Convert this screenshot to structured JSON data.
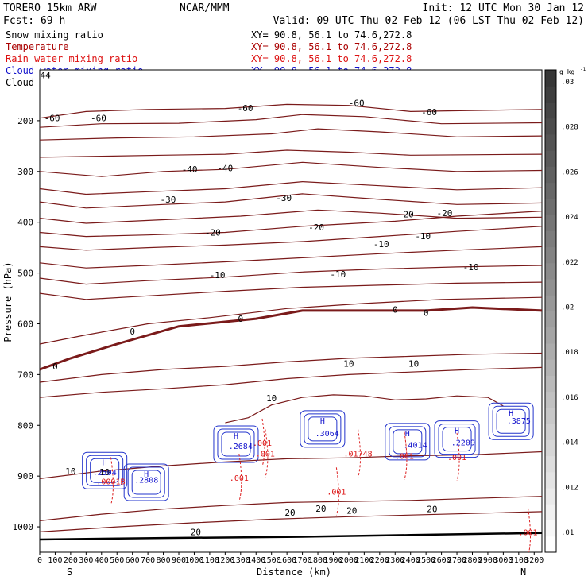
{
  "header": {
    "model": "TORERO  15km ARW",
    "center": "NCAR/MMM",
    "init": "Init: 12 UTC Mon 30 Jan 12",
    "fcst": "Fcst:    69 h",
    "valid": "Valid: 09 UTC Thu 02 Feb 12 (06 LST Thu 02 Feb 12)"
  },
  "fields": [
    {
      "name": "Snow mixing ratio",
      "xy": "",
      "color": "#000000"
    },
    {
      "name": "Temperature",
      "xy": "XY=  90.8, 56.1 to  74.6,272.8",
      "color": "#aa0000"
    },
    {
      "name": "Rain water mixing ratio",
      "xy": "XY=  90.8, 56.1 to  74.6,272.8",
      "color": "#dd1111"
    },
    {
      "name": "Cloud water mixing ratio",
      "xy": "XY=  90.8, 56.1 to  74.6,272.8",
      "color": "#1111cc"
    },
    {
      "name": "Cloud ice mixing ratio",
      "xy": "XY=  90.8, 56.1 to  74.6,272.8",
      "color": "#000000"
    }
  ],
  "xy_top": "XY=  90.8, 56.1 to  74.6,272.8",
  "chart_data": {
    "type": "cross-section",
    "xlabel": "Distance (km)",
    "ylabel": "Pressure (hPa)",
    "xlim": [
      0,
      3250
    ],
    "ylim": [
      1050,
      100
    ],
    "xticks": [
      "0",
      "100",
      "200",
      "300",
      "400",
      "500",
      "600",
      "700",
      "800",
      "900",
      "1000",
      "1100",
      "1200",
      "1300",
      "1400",
      "1500",
      "1600",
      "1700",
      "1800",
      "1900",
      "2000",
      "2100",
      "2200",
      "2300",
      "2400",
      "2500",
      "2600",
      "2700",
      "2800",
      "2900",
      "3000",
      "3100",
      "3200"
    ],
    "yticks": [
      "200",
      "300",
      "400",
      "500",
      "600",
      "700",
      "800",
      "900",
      "1000"
    ],
    "endpoints": {
      "left": "S",
      "right": "N"
    },
    "colorbar": {
      "unit": "g kg",
      "unit_exp": "-1",
      "labels": [
        ".01",
        ".012",
        ".014",
        ".016",
        ".018",
        ".02",
        ".022",
        ".024",
        ".026",
        ".028",
        ".03"
      ]
    },
    "temperature_contours": [
      {
        "label": "-60",
        "points": [
          [
            0,
            195
          ],
          [
            300,
            182
          ],
          [
            700,
            178
          ],
          [
            1200,
            176
          ],
          [
            1600,
            168
          ],
          [
            2000,
            170
          ],
          [
            2400,
            182
          ],
          [
            2800,
            180
          ],
          [
            3250,
            178
          ]
        ]
      },
      {
        "label": "-60",
        "points": [
          [
            0,
            213
          ],
          [
            400,
            206
          ],
          [
            900,
            205
          ],
          [
            1400,
            198
          ],
          [
            1700,
            188
          ],
          [
            2100,
            192
          ],
          [
            2600,
            206
          ],
          [
            3250,
            204
          ]
        ]
      },
      {
        "label": "-50",
        "points": [
          [
            0,
            238
          ],
          [
            500,
            234
          ],
          [
            1000,
            232
          ],
          [
            1500,
            226
          ],
          [
            1800,
            216
          ],
          [
            2200,
            222
          ],
          [
            2700,
            232
          ],
          [
            3250,
            230
          ]
        ]
      },
      {
        "label": "-40",
        "points": [
          [
            0,
            272
          ],
          [
            400,
            270
          ],
          [
            800,
            268
          ],
          [
            1200,
            266
          ],
          [
            1600,
            258
          ],
          [
            2000,
            262
          ],
          [
            2400,
            268
          ],
          [
            3250,
            266
          ]
        ]
      },
      {
        "label": "-40",
        "points": [
          [
            0,
            300
          ],
          [
            400,
            310
          ],
          [
            800,
            300
          ],
          [
            1200,
            296
          ],
          [
            1700,
            282
          ],
          [
            2200,
            292
          ],
          [
            2700,
            300
          ],
          [
            3250,
            298
          ]
        ]
      },
      {
        "label": "-30",
        "points": [
          [
            0,
            334
          ],
          [
            300,
            345
          ],
          [
            700,
            340
          ],
          [
            1200,
            334
          ],
          [
            1700,
            320
          ],
          [
            2200,
            328
          ],
          [
            2700,
            336
          ],
          [
            3250,
            332
          ]
        ]
      },
      {
        "label": "-30",
        "points": [
          [
            0,
            360
          ],
          [
            300,
            372
          ],
          [
            800,
            365
          ],
          [
            1200,
            360
          ],
          [
            1700,
            344
          ],
          [
            2200,
            355
          ],
          [
            2700,
            365
          ],
          [
            3250,
            362
          ]
        ]
      },
      {
        "label": "-20",
        "points": [
          [
            0,
            392
          ],
          [
            300,
            402
          ],
          [
            800,
            395
          ],
          [
            1300,
            388
          ],
          [
            1800,
            376
          ],
          [
            2200,
            382
          ],
          [
            2700,
            392
          ],
          [
            3250,
            390
          ]
        ]
      },
      {
        "label": "-20",
        "points": [
          [
            0,
            420
          ],
          [
            300,
            428
          ],
          [
            700,
            425
          ],
          [
            1200,
            420
          ],
          [
            1700,
            408
          ],
          [
            2300,
            398
          ],
          [
            2700,
            388
          ],
          [
            3250,
            378
          ]
        ]
      },
      {
        "label": "-10",
        "points": [
          [
            0,
            448
          ],
          [
            300,
            455
          ],
          [
            700,
            450
          ],
          [
            1200,
            445
          ],
          [
            1700,
            438
          ],
          [
            2200,
            428
          ],
          [
            2700,
            418
          ],
          [
            3250,
            408
          ]
        ]
      },
      {
        "label": "-10",
        "points": [
          [
            0,
            480
          ],
          [
            300,
            490
          ],
          [
            700,
            485
          ],
          [
            1200,
            478
          ],
          [
            1700,
            470
          ],
          [
            2200,
            462
          ],
          [
            2700,
            455
          ],
          [
            3250,
            448
          ]
        ]
      },
      {
        "label": "-10",
        "points": [
          [
            0,
            510
          ],
          [
            300,
            522
          ],
          [
            700,
            515
          ],
          [
            1200,
            508
          ],
          [
            1700,
            498
          ],
          [
            2200,
            492
          ],
          [
            2700,
            488
          ],
          [
            3250,
            485
          ]
        ]
      },
      {
        "label": "-10",
        "points": [
          [
            0,
            540
          ],
          [
            300,
            552
          ],
          [
            700,
            545
          ],
          [
            1200,
            536
          ],
          [
            1700,
            528
          ],
          [
            2200,
            524
          ],
          [
            2700,
            520
          ],
          [
            3250,
            518
          ]
        ]
      },
      {
        "label": "0",
        "thick": true,
        "points": [
          [
            0,
            690
          ],
          [
            200,
            668
          ],
          [
            500,
            640
          ],
          [
            900,
            605
          ],
          [
            1400,
            590
          ],
          [
            1700,
            574
          ],
          [
            2100,
            574
          ],
          [
            2500,
            574
          ],
          [
            2800,
            568
          ],
          [
            3250,
            574
          ]
        ]
      },
      {
        "label": "0",
        "points": [
          [
            0,
            640
          ],
          [
            300,
            622
          ],
          [
            700,
            600
          ],
          [
            1100,
            588
          ],
          [
            1600,
            570
          ],
          [
            2100,
            560
          ],
          [
            2600,
            552
          ],
          [
            3250,
            548
          ]
        ]
      },
      {
        "label": "10",
        "points": [
          [
            0,
            715
          ],
          [
            400,
            700
          ],
          [
            800,
            690
          ],
          [
            1200,
            684
          ],
          [
            1600,
            675
          ],
          [
            2000,
            668
          ],
          [
            2400,
            664
          ],
          [
            2800,
            660
          ],
          [
            3250,
            658
          ]
        ]
      },
      {
        "label": "10",
        "points": [
          [
            0,
            745
          ],
          [
            400,
            735
          ],
          [
            800,
            728
          ],
          [
            1200,
            720
          ],
          [
            1600,
            708
          ],
          [
            2000,
            700
          ],
          [
            2400,
            695
          ],
          [
            2800,
            690
          ],
          [
            3250,
            686
          ]
        ]
      },
      {
        "label": "10",
        "points": [
          [
            1200,
            795
          ],
          [
            1350,
            785
          ],
          [
            1500,
            760
          ],
          [
            1700,
            745
          ],
          [
            1900,
            740
          ],
          [
            2100,
            742
          ],
          [
            2300,
            750
          ],
          [
            2500,
            748
          ],
          [
            2700,
            742
          ],
          [
            2900,
            745
          ],
          [
            3000,
            762
          ]
        ]
      },
      {
        "label": "10",
        "points": [
          [
            0,
            905
          ],
          [
            400,
            890
          ],
          [
            800,
            880
          ],
          [
            1200,
            872
          ],
          [
            1600,
            866
          ],
          [
            2000,
            864
          ],
          [
            2400,
            860
          ],
          [
            2800,
            858
          ],
          [
            3250,
            852
          ]
        ]
      },
      {
        "label": "20",
        "points": [
          [
            0,
            988
          ],
          [
            400,
            975
          ],
          [
            800,
            965
          ],
          [
            1200,
            958
          ],
          [
            1600,
            952
          ],
          [
            2000,
            950
          ],
          [
            2400,
            948
          ],
          [
            2800,
            944
          ],
          [
            3250,
            940
          ]
        ]
      },
      {
        "label": "20",
        "points": [
          [
            0,
            1010
          ],
          [
            500,
            1000
          ],
          [
            1000,
            992
          ],
          [
            1500,
            985
          ],
          [
            2000,
            980
          ],
          [
            2500,
            976
          ],
          [
            3000,
            972
          ],
          [
            3250,
            970
          ]
        ]
      }
    ],
    "surface": {
      "points": [
        [
          0,
          1025
        ],
        [
          800,
          1022
        ],
        [
          1600,
          1020
        ],
        [
          2400,
          1016
        ],
        [
          3250,
          1012
        ]
      ]
    },
    "contour_labels_temperature": [
      {
        "text": "-44",
        "x": 20,
        "p": 110
      },
      {
        "text": "-60",
        "x": 80,
        "p": 195
      },
      {
        "text": "-60",
        "x": 380,
        "p": 195
      },
      {
        "text": "-60",
        "x": 1330,
        "p": 175
      },
      {
        "text": "-60",
        "x": 2050,
        "p": 165
      },
      {
        "text": "-60",
        "x": 2520,
        "p": 183
      },
      {
        "text": "-40",
        "x": 970,
        "p": 296
      },
      {
        "text": "-40",
        "x": 1200,
        "p": 293
      },
      {
        "text": "-30",
        "x": 830,
        "p": 355
      },
      {
        "text": "-30",
        "x": 1580,
        "p": 352
      },
      {
        "text": "-20",
        "x": 1120,
        "p": 420
      },
      {
        "text": "-20",
        "x": 1790,
        "p": 410
      },
      {
        "text": "-20",
        "x": 2370,
        "p": 384
      },
      {
        "text": "-20",
        "x": 2620,
        "p": 382
      },
      {
        "text": "-10",
        "x": 2210,
        "p": 443
      },
      {
        "text": "-10",
        "x": 2480,
        "p": 427
      },
      {
        "text": "-10",
        "x": 1150,
        "p": 504
      },
      {
        "text": "-10",
        "x": 1930,
        "p": 502
      },
      {
        "text": "-10",
        "x": 2790,
        "p": 488
      },
      {
        "text": "0",
        "x": 100,
        "p": 684
      },
      {
        "text": "0",
        "x": 600,
        "p": 615
      },
      {
        "text": "0",
        "x": 1300,
        "p": 590
      },
      {
        "text": "0",
        "x": 2300,
        "p": 572
      },
      {
        "text": "0",
        "x": 2500,
        "p": 578
      },
      {
        "text": "10",
        "x": 1500,
        "p": 746
      },
      {
        "text": "10",
        "x": 2000,
        "p": 678
      },
      {
        "text": "10",
        "x": 2420,
        "p": 678
      },
      {
        "text": "10",
        "x": 420,
        "p": 892
      },
      {
        "text": "10",
        "x": 200,
        "p": 890
      },
      {
        "text": "20",
        "x": 1620,
        "p": 972
      },
      {
        "text": "20",
        "x": 1820,
        "p": 964
      },
      {
        "text": "20",
        "x": 2020,
        "p": 968
      },
      {
        "text": "20",
        "x": 2540,
        "p": 965
      },
      {
        "text": "20",
        "x": 1010,
        "p": 1010
      }
    ],
    "cloud_water_labels": [
      {
        "text": "H",
        "x": 420,
        "p": 872
      },
      {
        "text": ".2504",
        "x": 420,
        "p": 892
      },
      {
        "text": "H",
        "x": 690,
        "p": 895
      },
      {
        "text": ".2808",
        "x": 690,
        "p": 907
      },
      {
        "text": "H",
        "x": 1270,
        "p": 820
      },
      {
        "text": ".2684",
        "x": 1300,
        "p": 840
      },
      {
        "text": "H",
        "x": 1830,
        "p": 790
      },
      {
        "text": ".3064",
        "x": 1860,
        "p": 815
      },
      {
        "text": "H",
        "x": 2380,
        "p": 815
      },
      {
        "text": ".4014",
        "x": 2430,
        "p": 838
      },
      {
        "text": "H",
        "x": 2700,
        "p": 810
      },
      {
        "text": ".2209",
        "x": 2740,
        "p": 833
      },
      {
        "text": "H",
        "x": 3050,
        "p": 775
      },
      {
        "text": ".3875",
        "x": 3100,
        "p": 790
      }
    ],
    "rain_labels": [
      {
        "text": ".0001B",
        "x": 460,
        "p": 910
      },
      {
        "text": ".001",
        "x": 1290,
        "p": 903
      },
      {
        "text": ".001",
        "x": 1440,
        "p": 834
      },
      {
        "text": ".001",
        "x": 1460,
        "p": 855
      },
      {
        "text": ".01748",
        "x": 2060,
        "p": 855
      },
      {
        "text": ".001",
        "x": 2360,
        "p": 860
      },
      {
        "text": ".001",
        "x": 2700,
        "p": 862
      },
      {
        "text": ".001",
        "x": 1920,
        "p": 930
      },
      {
        "text": ".001",
        "x": 3160,
        "p": 1010
      }
    ]
  }
}
